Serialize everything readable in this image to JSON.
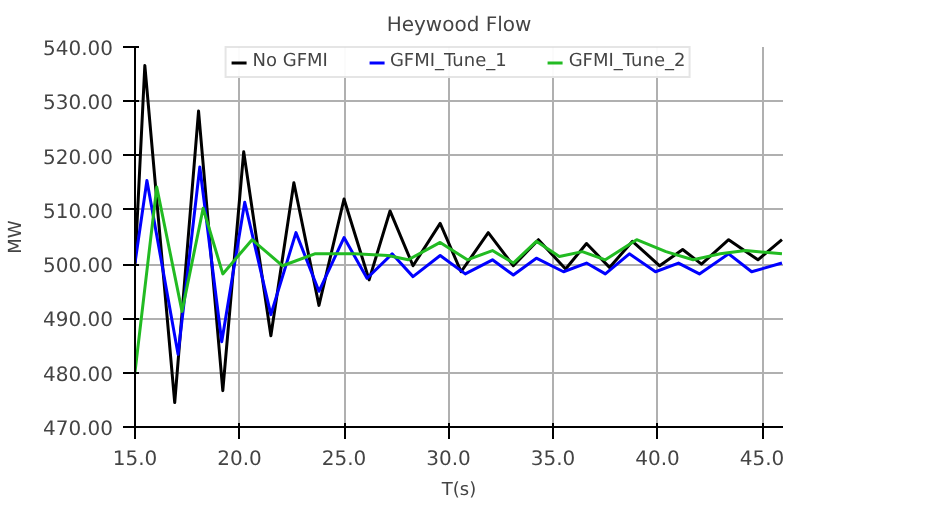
{
  "chart_data": {
    "type": "line",
    "title": "Heywood Flow",
    "xlabel": "T(s)",
    "ylabel": "MW",
    "xlim": [
      15,
      46
    ],
    "xticks": [
      {
        "value": 15,
        "label": "15.0"
      },
      {
        "value": 20,
        "label": "20.0"
      },
      {
        "value": 25,
        "label": "25.0"
      },
      {
        "value": 30,
        "label": "30.0"
      },
      {
        "value": 35,
        "label": "35.0"
      },
      {
        "value": 40,
        "label": "40.0"
      },
      {
        "value": 45,
        "label": "45.0"
      }
    ],
    "ylim": [
      470,
      540
    ],
    "yticks": [
      {
        "value": 470,
        "label": "470.00"
      },
      {
        "value": 480,
        "label": "480.00"
      },
      {
        "value": 490,
        "label": "490.00"
      },
      {
        "value": 500,
        "label": "500.00"
      },
      {
        "value": 510,
        "label": "510.00"
      },
      {
        "value": 520,
        "label": "520.00"
      },
      {
        "value": 530,
        "label": "530.00"
      },
      {
        "value": 540,
        "label": "540.00"
      }
    ],
    "grid": true,
    "legend": "top",
    "marker": "none",
    "line_style": "solid",
    "series": [
      {
        "name": "No GFMI",
        "color": "#000000",
        "x": [
          15,
          15.47,
          16.9,
          18.04,
          19.2,
          20.2,
          21.5,
          22.6,
          23.8,
          25.0,
          26.2,
          27.2,
          28.3,
          29.6,
          30.6,
          31.9,
          33.1,
          34.3,
          35.6,
          36.6,
          37.7,
          38.8,
          40.1,
          41.2,
          42.1,
          43.4,
          44.8,
          45.95
        ],
        "values": [
          500,
          536.6,
          474.5,
          528.2,
          476.7,
          520.7,
          486.8,
          515,
          492.4,
          512,
          497.1,
          509.8,
          499.7,
          507.5,
          498.6,
          505.8,
          499.7,
          504.5,
          499.1,
          503.8,
          499.4,
          504.2,
          499.7,
          502.7,
          500,
          504.5,
          500.8,
          504.5
        ]
      },
      {
        "name": "GFMI_Tune_1",
        "color": "#0000ff",
        "x": [
          15,
          15.57,
          17.06,
          18.1,
          19.15,
          20.25,
          21.5,
          22.7,
          23.8,
          25.0,
          26.1,
          27.3,
          28.3,
          29.6,
          30.8,
          32.1,
          33.1,
          34.2,
          35.5,
          36.6,
          37.5,
          38.65,
          39.9,
          41.0,
          42.0,
          43.4,
          44.5,
          45.95
        ],
        "values": [
          500.2,
          515.4,
          483.4,
          517.9,
          485.7,
          511.4,
          490.7,
          505.8,
          495,
          504.9,
          497.4,
          501.9,
          497.7,
          501.6,
          498.2,
          500.8,
          498,
          501.1,
          498.6,
          500.2,
          498.2,
          501.9,
          498.6,
          500.2,
          498.2,
          501.9,
          498.6,
          500.2
        ]
      },
      {
        "name": "GFMI_Tune_2",
        "color": "#22bb22",
        "x": [
          15,
          16.04,
          17.25,
          18.26,
          19.2,
          20.6,
          22.06,
          23.6,
          25.5,
          27.1,
          28.07,
          29.6,
          30.9,
          32.1,
          33.1,
          34.2,
          35.3,
          36.4,
          37.5,
          39.0,
          40.4,
          41.7,
          43.0,
          44.2,
          45.95
        ],
        "values": [
          480.1,
          514.2,
          491.3,
          510.3,
          498.2,
          504.5,
          499.7,
          501.9,
          501.9,
          501.6,
          500.8,
          504,
          500.8,
          502.5,
          500.2,
          504.2,
          501.4,
          502.3,
          500.8,
          504.5,
          502.3,
          500.8,
          501.9,
          502.5,
          501.9
        ]
      }
    ]
  }
}
